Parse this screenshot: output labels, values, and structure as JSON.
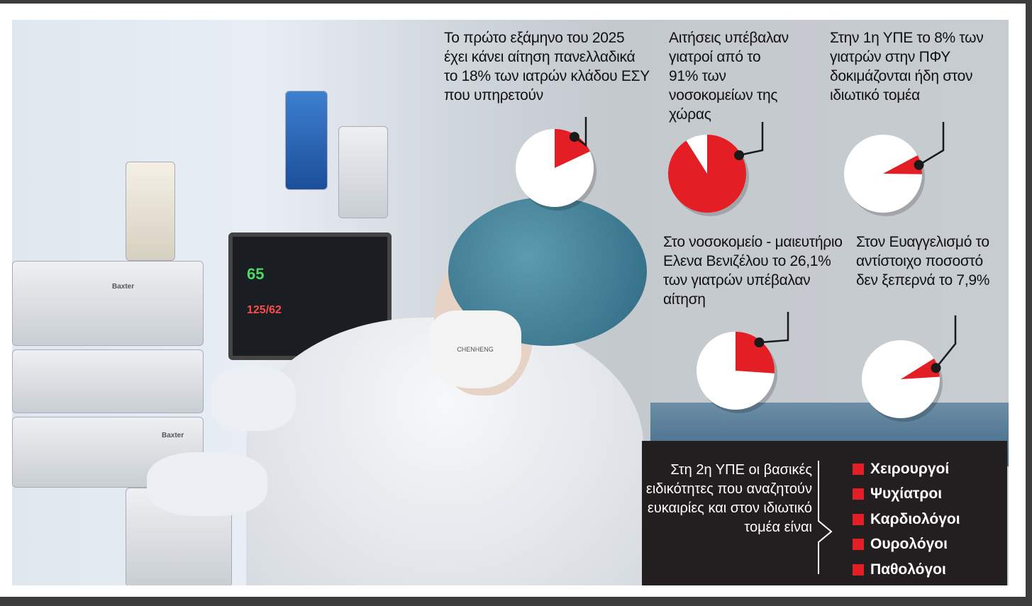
{
  "colors": {
    "accent": "#e31e24",
    "pie_base": "#ffffff",
    "callout": "#1a1a1a",
    "box_bg": "#231f20"
  },
  "photo": {
    "monitor_values": [
      "65",
      "125/62"
    ],
    "mask_text": "CHENHENG",
    "brand": "Baxter"
  },
  "chart_data": {
    "type": "pie",
    "charts": [
      {
        "caption": "Το πρώτο εξάμηνο του 2025 έχει κάνει αίτηση πανελλαδικά το 18% των ιατρών κλάδου ΕΣΥ που υπηρετούν",
        "value_percent": 18
      },
      {
        "caption": "Αιτήσεις υπέβαλαν γιατροί από το 91% των νοσοκομείων της χώρας",
        "value_percent": 91
      },
      {
        "caption": "Στην 1η ΥΠΕ το 8% των γιατρών στην ΠΦΥ δοκιμάζονται ήδη στον ιδιωτικό τομέα",
        "value_percent": 8
      },
      {
        "caption": "Στο νοσοκομείο - μαιευτήριο Ελενα Βενιζέλου το 26,1% των γιατρών υπέβαλαν αίτηση",
        "value_percent": 26.1
      },
      {
        "caption": "Στον Ευαγγελισμό το αντίστοιχο ποσοστό δεν ξεπερνά το 7,9%",
        "value_percent": 7.9
      }
    ]
  },
  "specialties_box": {
    "intro": "Στη 2η ΥΠΕ οι βασικές ειδικότητες που αναζητούν ευκαιρίες και στον ιδιωτικό τομέα είναι",
    "items": [
      "Χειρουργοί",
      "Ψυχίατροι",
      "Καρδιολόγοι",
      "Ουρολόγοι",
      "Παθολόγοι"
    ]
  }
}
